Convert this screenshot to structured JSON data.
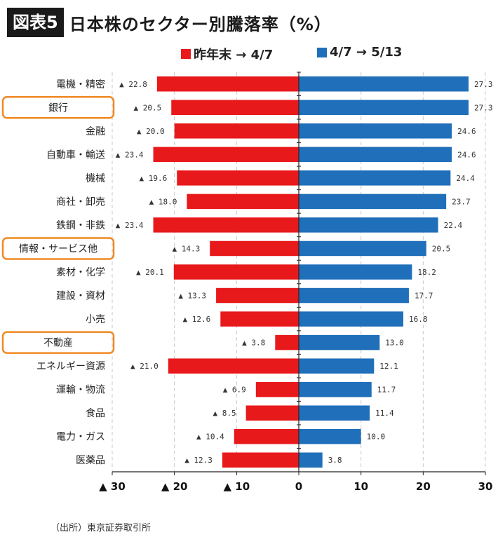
{
  "header": {
    "badge": "図表5",
    "title": "日本株のセクター別騰落率（%）"
  },
  "source": "（出所）東京証券取引所",
  "chart_data": {
    "type": "bar",
    "orientation": "horizontal-diverging",
    "categories": [
      "電機・精密",
      "銀行",
      "金融",
      "自動車・輸送",
      "機械",
      "商社・卸売",
      "鉄鋼・非鉄",
      "情報・サービス他",
      "素材・化学",
      "建設・資材",
      "小売",
      "不動産",
      "エネルギー資源",
      "運輸・物流",
      "食品",
      "電力・ガス",
      "医薬品"
    ],
    "highlighted_categories": [
      "銀行",
      "情報・サービス他",
      "不動産"
    ],
    "series": [
      {
        "name": "昨年末 → 4/7",
        "color": "#e8191b",
        "values": [
          -22.8,
          -20.5,
          -20.0,
          -23.4,
          -19.6,
          -18.0,
          -23.4,
          -14.3,
          -20.1,
          -13.3,
          -12.6,
          -3.8,
          -21.0,
          -6.9,
          -8.5,
          -10.4,
          -12.3
        ],
        "labels": [
          "▲ 22.8",
          "▲ 20.5",
          "▲ 20.0",
          "▲ 23.4",
          "▲ 19.6",
          "▲ 18.0",
          "▲ 23.4",
          "▲ 14.3",
          "▲ 20.1",
          "▲ 13.3",
          "▲ 12.6",
          "▲ 3.8",
          "▲ 21.0",
          "▲ 6.9",
          "▲ 8.5",
          "▲ 10.4",
          "▲ 12.3"
        ]
      },
      {
        "name": "4/7 → 5/13",
        "color": "#1f6fba",
        "values": [
          27.3,
          27.3,
          24.6,
          24.6,
          24.4,
          23.7,
          22.4,
          20.5,
          18.2,
          17.7,
          16.8,
          13.0,
          12.1,
          11.7,
          11.4,
          10.0,
          3.8
        ],
        "labels": [
          "27.3",
          "27.3",
          "24.6",
          "24.6",
          "24.4",
          "23.7",
          "22.4",
          "20.5",
          "18.2",
          "17.7",
          "16.8",
          "13.0",
          "12.1",
          "11.7",
          "11.4",
          "10.0",
          "3.8"
        ]
      }
    ],
    "xlim": [
      -30,
      30
    ],
    "xticks": [
      -30,
      -20,
      -10,
      0,
      10,
      20,
      30
    ],
    "xtick_labels": [
      "▲ 30",
      "▲ 20",
      "▲ 10",
      "0",
      "10",
      "20",
      "30"
    ],
    "grid": "vertical dashed",
    "legend_position": "top-center",
    "highlight_color": "#f08a24"
  }
}
